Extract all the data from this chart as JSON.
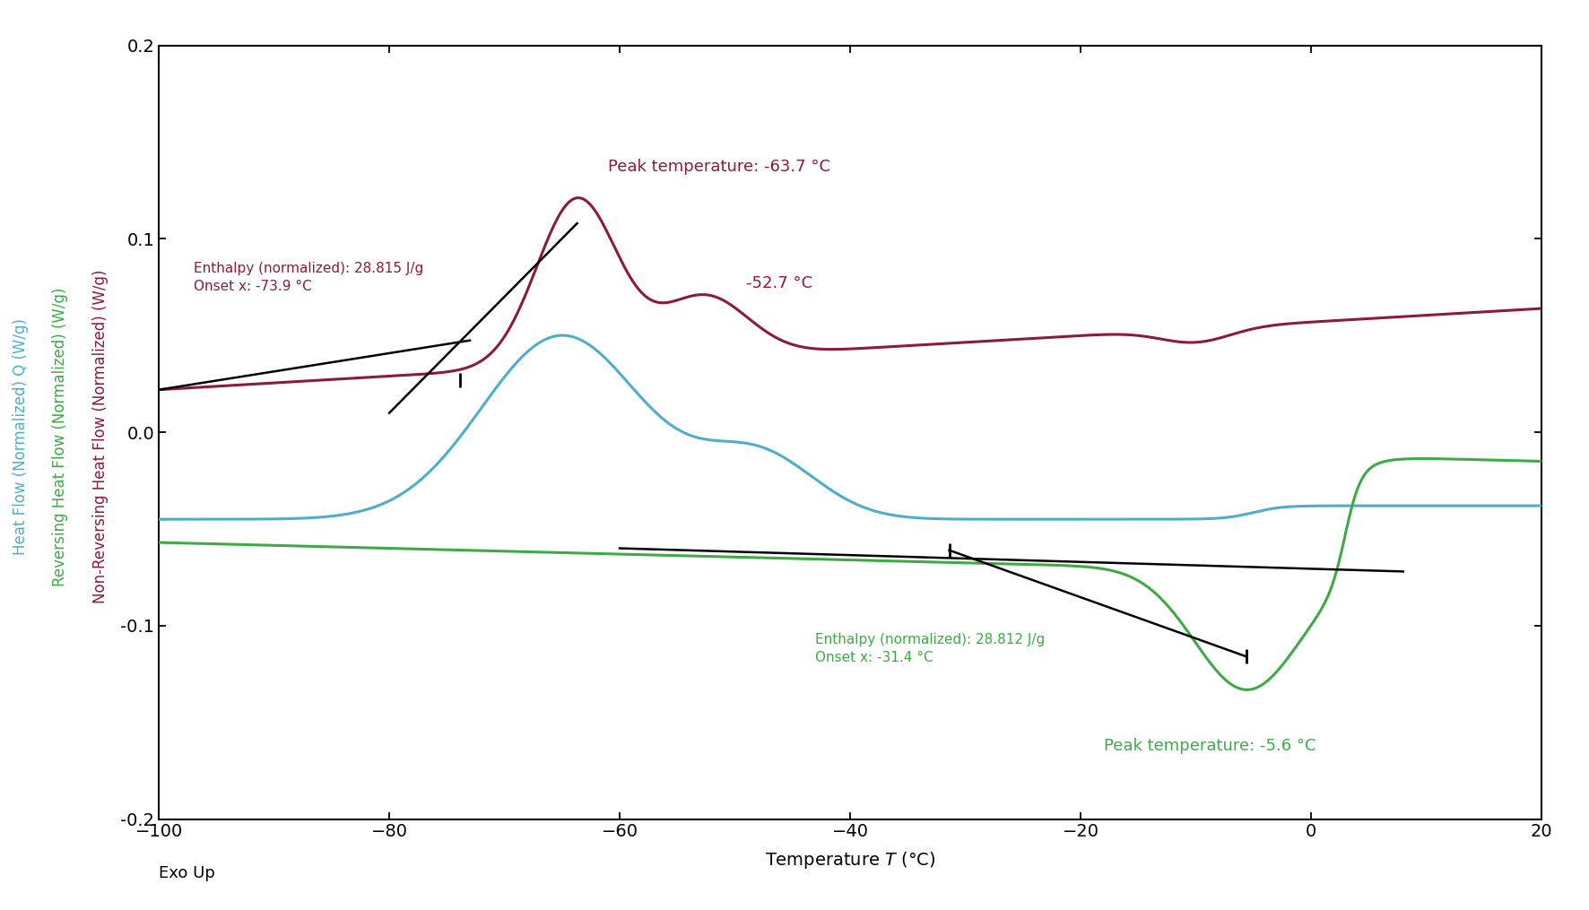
{
  "xlim": [
    -100,
    20
  ],
  "ylim": [
    -0.2,
    0.2
  ],
  "color_blue": "#4DAECC",
  "color_green": "#3DAA45",
  "color_red": "#8B1A3B",
  "color_black": "#000000",
  "ylabel_blue": "Heat Flow (Normalized) Q (W/g)",
  "ylabel_green": "Reversing Heat Flow (Normalized) (W/g)",
  "ylabel_red": "Non-Reversing Heat Flow (Normalized) (W/g)",
  "exo_up": "Exo Up",
  "annotation_red_peak_temp": "Peak temperature: -63.7 °C",
  "annotation_red_second": "-52.7 °C",
  "annotation_red_enthalpy": "Enthalpy (normalized): 28.815 J/g\nOnset x: -73.9 °C",
  "annotation_green_enthalpy": "Enthalpy (normalized): 28.812 J/g\nOnset x: -31.4 °C",
  "annotation_green_peak_temp": "Peak temperature: -5.6 °C",
  "xticks": [
    -100,
    -80,
    -60,
    -40,
    -20,
    0,
    20
  ],
  "yticks": [
    -0.2,
    -0.1,
    0.0,
    0.1,
    0.2
  ]
}
